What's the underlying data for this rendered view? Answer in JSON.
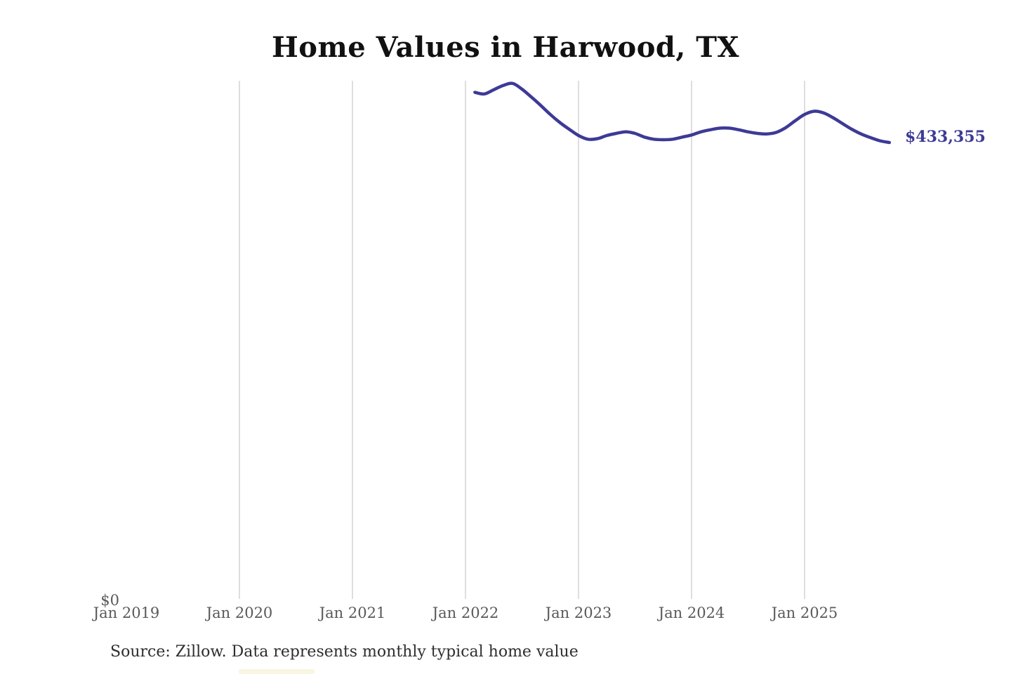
{
  "title": "Home Values in Harwood, TX",
  "source_note": "Source: Zillow. Data represents monthly typical home value",
  "end_label": "$433,355",
  "y_axis": {
    "zero_label": "$0"
  },
  "x_axis": {
    "tick_labels": [
      "Jan 2019",
      "Jan 2020",
      "Jan 2021",
      "Jan 2022",
      "Jan 2023",
      "Jan 2024",
      "Jan 2025"
    ],
    "gridline_labels": [
      "Jan 2020",
      "Jan 2021",
      "Jan 2022",
      "Jan 2023",
      "Jan 2024",
      "Jan 2025"
    ]
  },
  "colors": {
    "line": "#3d3a96",
    "end_label": "#3d3a96",
    "gridline": "#cccccc",
    "axis_label": "#595959",
    "title": "#111111",
    "source": "#2e2e2e"
  },
  "chart_data": {
    "type": "line",
    "title": "Home Values in Harwood, TX",
    "series_name": "Monthly typical home value (USD)",
    "subtitle": "",
    "xlabel": "",
    "ylabel": "",
    "ylim": [
      0,
      500000
    ],
    "x_range": [
      "Jan 2019",
      "Oct 2025"
    ],
    "grid": "vertical-only",
    "legend": "none",
    "annotation": {
      "text": "$433,355",
      "position": "line-end"
    },
    "x": [
      "2022-02",
      "2022-03",
      "2022-04",
      "2022-05",
      "2022-06",
      "2022-07",
      "2022-08",
      "2022-09",
      "2022-10",
      "2022-11",
      "2022-12",
      "2023-01",
      "2023-02",
      "2023-03",
      "2023-04",
      "2023-05",
      "2023-06",
      "2023-07",
      "2023-08",
      "2023-09",
      "2023-10",
      "2023-11",
      "2023-12",
      "2024-01",
      "2024-02",
      "2024-03",
      "2024-04",
      "2024-05",
      "2024-06",
      "2024-07",
      "2024-08",
      "2024-09",
      "2024-10",
      "2024-11",
      "2024-12",
      "2025-01",
      "2025-02",
      "2025-03",
      "2025-04",
      "2025-05",
      "2025-06",
      "2025-07",
      "2025-08",
      "2025-09",
      "2025-10"
    ],
    "values": [
      481000,
      479500,
      483500,
      487500,
      489500,
      484000,
      476500,
      468500,
      460000,
      452500,
      446000,
      440000,
      436500,
      437000,
      440000,
      442000,
      443500,
      442000,
      438500,
      436500,
      436000,
      436500,
      438500,
      440500,
      443500,
      445500,
      447000,
      447000,
      445500,
      443500,
      442000,
      441500,
      443000,
      447500,
      454000,
      460000,
      463000,
      461500,
      457000,
      451500,
      446000,
      441500,
      438000,
      435000,
      433355
    ]
  }
}
